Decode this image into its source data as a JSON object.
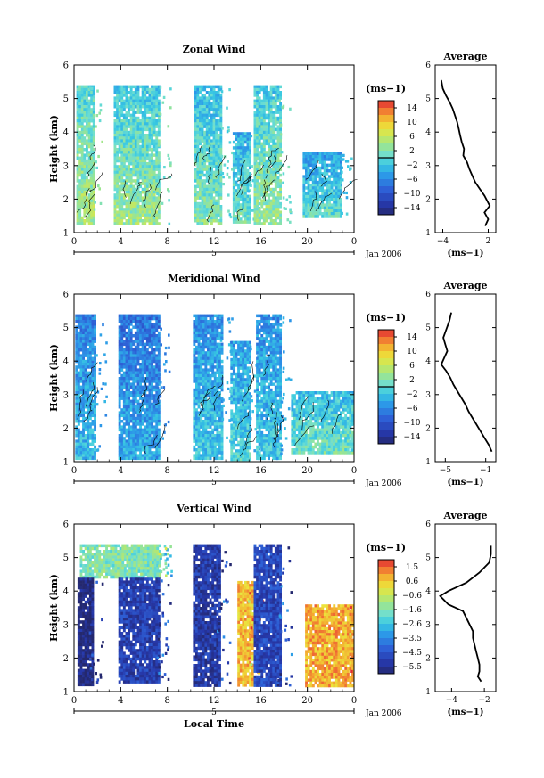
{
  "chart_data": [
    {
      "type": "heatmap",
      "title": "Zonal Wind",
      "xlabel": "",
      "ylabel": "Height (km)",
      "xlim": [
        0,
        24
      ],
      "ylim": [
        1,
        6
      ],
      "x_ticks": [
        "0",
        "4",
        "8",
        "12",
        "16",
        "20",
        "0"
      ],
      "y_ticks": [
        "1",
        "2",
        "3",
        "4",
        "5",
        "6"
      ],
      "date_bar_label": "5",
      "date_label": "Jan 2006",
      "colorbar": {
        "unit": "(ms−1)",
        "ticks": [
          "14",
          "10",
          "6",
          "2",
          "−2",
          "−6",
          "−10",
          "−14"
        ],
        "range": [
          -16,
          16
        ],
        "zero_line": 0
      },
      "blocks": [
        {
          "x": [
            0.2,
            1.6
          ],
          "y": [
            1.3,
            5.4
          ],
          "value": 2
        },
        {
          "x": [
            3.4,
            7.3
          ],
          "y": [
            1.3,
            5.4
          ],
          "value": 1
        },
        {
          "x": [
            10.3,
            12.6
          ],
          "y": [
            1.3,
            5.4
          ],
          "value": 0
        },
        {
          "x": [
            13.6,
            15.0
          ],
          "y": [
            1.3,
            4.0
          ],
          "value": -1
        },
        {
          "x": [
            15.4,
            17.6
          ],
          "y": [
            1.3,
            5.4
          ],
          "value": 1
        },
        {
          "x": [
            19.6,
            22.8
          ],
          "y": [
            1.5,
            3.4
          ],
          "value": -2
        }
      ],
      "profile": {
        "title": "Average",
        "xlabel": "(ms−1)",
        "xlim": [
          -5,
          3
        ],
        "x_ticks": [
          "−4",
          "2"
        ],
        "y_ticks": [
          "1",
          "2",
          "3",
          "4",
          "5",
          "6"
        ],
        "x": [
          -4.2,
          -4.0,
          -3.6,
          -3.1,
          -2.7,
          -2.4,
          -2.1,
          -1.9,
          -1.7,
          -1.5,
          -1.2,
          -1.3,
          -0.8,
          -0.5,
          -0.1,
          0.3,
          0.9,
          1.5,
          2.2,
          1.5,
          2.0,
          1.6
        ],
        "y": [
          5.55,
          5.3,
          5.1,
          4.9,
          4.7,
          4.5,
          4.3,
          4.1,
          3.9,
          3.7,
          3.5,
          3.3,
          3.1,
          2.9,
          2.7,
          2.5,
          2.3,
          2.1,
          1.8,
          1.6,
          1.4,
          1.2
        ]
      }
    },
    {
      "type": "heatmap",
      "title": "Meridional Wind",
      "xlabel": "",
      "ylabel": "Height (km)",
      "xlim": [
        0,
        24
      ],
      "ylim": [
        1,
        6
      ],
      "x_ticks": [
        "0",
        "4",
        "8",
        "12",
        "16",
        "20",
        "0"
      ],
      "y_ticks": [
        "1",
        "2",
        "3",
        "4",
        "5",
        "6"
      ],
      "date_bar_label": "5",
      "date_label": "Jan 2006",
      "colorbar": {
        "unit": "(ms−1)",
        "ticks": [
          "14",
          "10",
          "6",
          "2",
          "−2",
          "−6",
          "−10",
          "−14"
        ],
        "range": [
          -16,
          16
        ],
        "zero_line": 0
      },
      "blocks": [
        {
          "x": [
            0.1,
            1.8
          ],
          "y": [
            1.1,
            5.4
          ],
          "value": -5
        },
        {
          "x": [
            3.8,
            7.2
          ],
          "y": [
            1.1,
            5.4
          ],
          "value": -6
        },
        {
          "x": [
            10.2,
            12.6
          ],
          "y": [
            1.1,
            5.4
          ],
          "value": -4
        },
        {
          "x": [
            13.4,
            15.1
          ],
          "y": [
            1.1,
            4.6
          ],
          "value": -3
        },
        {
          "x": [
            15.6,
            17.6
          ],
          "y": [
            1.1,
            5.4
          ],
          "value": -4
        },
        {
          "x": [
            18.6,
            23.8
          ],
          "y": [
            1.3,
            3.1
          ],
          "value": -1
        }
      ],
      "profile": {
        "title": "Average",
        "xlabel": "(ms−1)",
        "xlim": [
          -6,
          0
        ],
        "x_ticks": [
          "−5",
          "−1"
        ],
        "y_ticks": [
          "1",
          "2",
          "3",
          "4",
          "5",
          "6"
        ],
        "x": [
          -4.4,
          -4.6,
          -4.9,
          -5.2,
          -5.0,
          -4.8,
          -5.1,
          -5.4,
          -4.9,
          -4.5,
          -4.2,
          -3.8,
          -3.4,
          -3.0,
          -2.7,
          -2.3,
          -1.9,
          -1.5,
          -1.1,
          -0.7,
          -0.4
        ],
        "y": [
          5.45,
          5.2,
          4.95,
          4.7,
          4.5,
          4.3,
          4.1,
          3.9,
          3.7,
          3.5,
          3.3,
          3.1,
          2.9,
          2.7,
          2.5,
          2.3,
          2.1,
          1.9,
          1.7,
          1.5,
          1.3
        ]
      }
    },
    {
      "type": "heatmap",
      "title": "Vertical Wind",
      "xlabel": "Local Time",
      "ylabel": "Height (km)",
      "xlim": [
        0,
        24
      ],
      "ylim": [
        1,
        6
      ],
      "x_ticks": [
        "0",
        "4",
        "8",
        "12",
        "16",
        "20",
        "0"
      ],
      "y_ticks": [
        "1",
        "2",
        "3",
        "4",
        "5",
        "6"
      ],
      "date_bar_label": "5",
      "date_label": "Jan 2006",
      "colorbar": {
        "unit": "(ms−1)",
        "ticks": [
          "1.5",
          "0.6",
          "−0.6",
          "−1.6",
          "−2.6",
          "−3.5",
          "−4.5",
          "−5.5"
        ],
        "range": [
          -6,
          2
        ],
        "zero_line": null
      },
      "blocks": [
        {
          "x": [
            0.5,
            7.4
          ],
          "y": [
            4.4,
            5.4
          ],
          "value": -1.5
        },
        {
          "x": [
            0.3,
            1.5
          ],
          "y": [
            1.2,
            4.4
          ],
          "value": -5.8
        },
        {
          "x": [
            3.8,
            7.3
          ],
          "y": [
            1.3,
            4.4
          ],
          "value": -5.0
        },
        {
          "x": [
            10.2,
            12.5
          ],
          "y": [
            1.2,
            5.4
          ],
          "value": -5.2
        },
        {
          "x": [
            14.0,
            15.2
          ],
          "y": [
            1.2,
            4.3
          ],
          "value": 0.6
        },
        {
          "x": [
            15.4,
            17.7
          ],
          "y": [
            1.2,
            5.4
          ],
          "value": -4.8
        },
        {
          "x": [
            19.8,
            23.8
          ],
          "y": [
            1.2,
            3.6
          ],
          "value": 0.8
        }
      ],
      "profile": {
        "title": "Average",
        "xlabel": "(ms−1)",
        "xlim": [
          -5,
          -1.3
        ],
        "x_ticks": [
          "−4",
          "−2"
        ],
        "y_ticks": [
          "1",
          "2",
          "3",
          "4",
          "5",
          "6"
        ],
        "x": [
          -1.6,
          -1.6,
          -1.7,
          -2.3,
          -3.1,
          -4.2,
          -4.7,
          -4.2,
          -3.3,
          -3.1,
          -2.9,
          -2.7,
          -2.7,
          -2.6,
          -2.5,
          -2.4,
          -2.3,
          -2.3,
          -2.4,
          -2.2
        ],
        "y": [
          5.35,
          5.1,
          4.85,
          4.55,
          4.25,
          4.0,
          3.85,
          3.6,
          3.4,
          3.2,
          3.0,
          2.8,
          2.6,
          2.4,
          2.2,
          2.0,
          1.8,
          1.6,
          1.45,
          1.3
        ]
      }
    }
  ]
}
